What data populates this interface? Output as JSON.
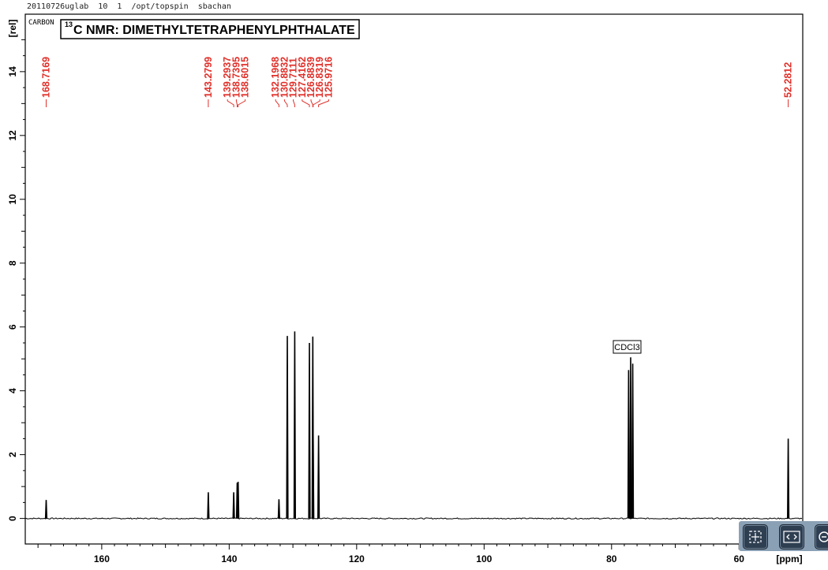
{
  "header": {
    "text": "20110726uglab  10  1  /opt/topspin  sbachan"
  },
  "chart_data": {
    "type": "line",
    "title": "C NMR: DIMETHYLTETRAPHENYLPHTHALATE",
    "title_superscript": "13",
    "corner_label": "CARBON",
    "xlabel": "[ppm]",
    "ylabel": "[rel]",
    "xlim": [
      172,
      50
    ],
    "ylim": [
      -0.8,
      15.8
    ],
    "x_reversed": true,
    "x_ticks": [
      160,
      140,
      120,
      100,
      80,
      60
    ],
    "y_ticks": [
      0,
      2,
      4,
      6,
      8,
      10,
      12,
      14
    ],
    "solvent_label": "CDCl3",
    "peaks": [
      {
        "x": 168.7169,
        "y": 0.58
      },
      {
        "x": 143.2799,
        "y": 0.82
      },
      {
        "x": 139.2937,
        "y": 0.82
      },
      {
        "x": 138.7395,
        "y": 1.12
      },
      {
        "x": 138.6015,
        "y": 1.15
      },
      {
        "x": 132.1968,
        "y": 0.6
      },
      {
        "x": 130.8832,
        "y": 5.72
      },
      {
        "x": 129.7111,
        "y": 5.86
      },
      {
        "x": 127.4162,
        "y": 5.5
      },
      {
        "x": 126.8839,
        "y": 5.7
      },
      {
        "x": 126.8319,
        "y": 2.6
      },
      {
        "x": 125.9716,
        "y": 2.6
      },
      {
        "x": 77.32,
        "y": 4.65
      },
      {
        "x": 77.0,
        "y": 5.05
      },
      {
        "x": 76.68,
        "y": 4.85
      },
      {
        "x": 52.2812,
        "y": 2.5
      }
    ],
    "peak_labels": [
      {
        "group": 1,
        "labels": [
          "168.7169"
        ]
      },
      {
        "group": 2,
        "labels": [
          "143.2799"
        ]
      },
      {
        "group": 3,
        "labels": [
          "139.2937",
          "138.7395",
          "138.6015"
        ]
      },
      {
        "group": 4,
        "labels": [
          "132.1968",
          "130.8832",
          "129.7111",
          "127.4162",
          "126.8839",
          "126.8319",
          "125.9716"
        ]
      },
      {
        "group": 5,
        "labels": [
          "52.2812"
        ]
      }
    ],
    "colors": {
      "spectrum": "#000000",
      "peak_label": "#e0302a",
      "axis": "#000000"
    },
    "grid": false
  },
  "controls": [
    {
      "name": "fit-view-button",
      "icon": "fit-icon"
    },
    {
      "name": "horizontal-expand-button",
      "icon": "chevron-left-right-icon"
    },
    {
      "name": "zoom-out-button",
      "icon": "minus-circle-icon"
    }
  ]
}
